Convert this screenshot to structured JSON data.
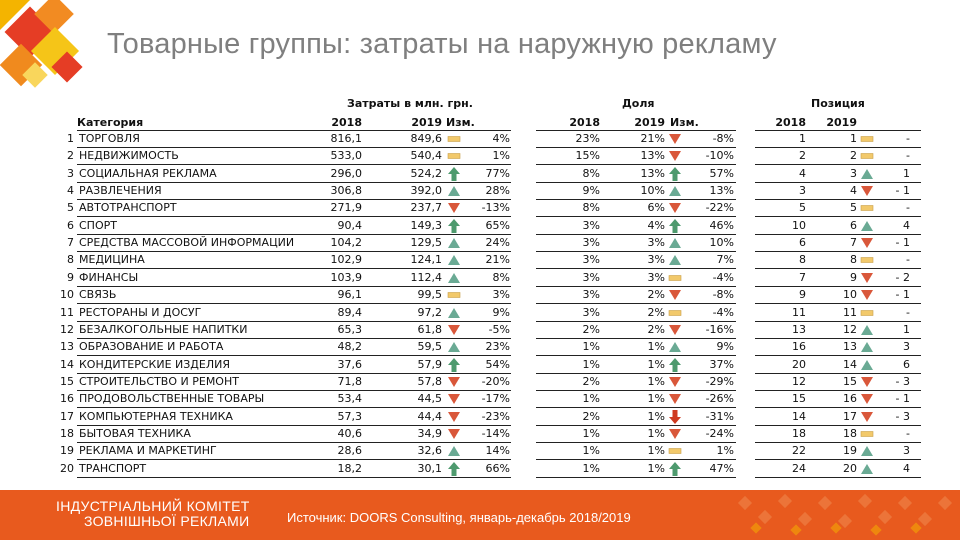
{
  "title": "Товарные группы: затраты на наружную рекламу",
  "headers": {
    "spend_group": "Затраты в млн. грн.",
    "share_group": "Доля",
    "position_group": "Позиция",
    "category": "Категория",
    "y2018": "2018",
    "y2019": "2019",
    "change": "Изм."
  },
  "rows": [
    {
      "n": "1",
      "name": "ТОРГОВЛЯ",
      "s18": "816,1",
      "s19": "849,6",
      "si": "flat",
      "sc": "4%",
      "d18": "23%",
      "d19": "21%",
      "di": "down",
      "dc": "-8%",
      "p18": "1",
      "p19": "1",
      "pi": "flat",
      "pc": "-"
    },
    {
      "n": "2",
      "name": "НЕДВИЖИМОСТЬ",
      "s18": "533,0",
      "s19": "540,4",
      "si": "flat",
      "sc": "1%",
      "d18": "15%",
      "d19": "13%",
      "di": "down",
      "dc": "-10%",
      "p18": "2",
      "p19": "2",
      "pi": "flat",
      "pc": "-"
    },
    {
      "n": "3",
      "name": "СОЦИАЛЬНАЯ РЕКЛАМА",
      "s18": "296,0",
      "s19": "524,2",
      "si": "bigup",
      "sc": "77%",
      "d18": "8%",
      "d19": "13%",
      "di": "bigup",
      "dc": "57%",
      "p18": "4",
      "p19": "3",
      "pi": "up",
      "pc": "1"
    },
    {
      "n": "4",
      "name": "РАЗВЛЕЧЕНИЯ",
      "s18": "306,8",
      "s19": "392,0",
      "si": "up",
      "sc": "28%",
      "d18": "9%",
      "d19": "10%",
      "di": "up",
      "dc": "13%",
      "p18": "3",
      "p19": "4",
      "pi": "down",
      "pc": "- 1"
    },
    {
      "n": "5",
      "name": "АВТОТРАНСПОРТ",
      "s18": "271,9",
      "s19": "237,7",
      "si": "down",
      "sc": "-13%",
      "d18": "8%",
      "d19": "6%",
      "di": "down",
      "dc": "-22%",
      "p18": "5",
      "p19": "5",
      "pi": "flat",
      "pc": "-"
    },
    {
      "n": "6",
      "name": "СПОРТ",
      "s18": "90,4",
      "s19": "149,3",
      "si": "bigup",
      "sc": "65%",
      "d18": "3%",
      "d19": "4%",
      "di": "bigup",
      "dc": "46%",
      "p18": "10",
      "p19": "6",
      "pi": "up",
      "pc": "4"
    },
    {
      "n": "7",
      "name": "СРЕДСТВА МАССОВОЙ ИНФОРМАЦИИ",
      "s18": "104,2",
      "s19": "129,5",
      "si": "up",
      "sc": "24%",
      "d18": "3%",
      "d19": "3%",
      "di": "up",
      "dc": "10%",
      "p18": "6",
      "p19": "7",
      "pi": "down",
      "pc": "- 1"
    },
    {
      "n": "8",
      "name": "МЕДИЦИНА",
      "s18": "102,9",
      "s19": "124,1",
      "si": "up",
      "sc": "21%",
      "d18": "3%",
      "d19": "3%",
      "di": "up",
      "dc": "7%",
      "p18": "8",
      "p19": "8",
      "pi": "flat",
      "pc": "-"
    },
    {
      "n": "9",
      "name": "ФИНАНСЫ",
      "s18": "103,9",
      "s19": "112,4",
      "si": "up",
      "sc": "8%",
      "d18": "3%",
      "d19": "3%",
      "di": "flat",
      "dc": "-4%",
      "p18": "7",
      "p19": "9",
      "pi": "down",
      "pc": "- 2"
    },
    {
      "n": "10",
      "name": "СВЯЗЬ",
      "s18": "96,1",
      "s19": "99,5",
      "si": "flat",
      "sc": "3%",
      "d18": "3%",
      "d19": "2%",
      "di": "down",
      "dc": "-8%",
      "p18": "9",
      "p19": "10",
      "pi": "down",
      "pc": "- 1"
    },
    {
      "n": "11",
      "name": "РЕСТОРАНЫ И ДОСУГ",
      "s18": "89,4",
      "s19": "97,2",
      "si": "up",
      "sc": "9%",
      "d18": "3%",
      "d19": "2%",
      "di": "flat",
      "dc": "-4%",
      "p18": "11",
      "p19": "11",
      "pi": "flat",
      "pc": "-"
    },
    {
      "n": "12",
      "name": "БЕЗАЛКОГОЛЬНЫЕ НАПИТКИ",
      "s18": "65,3",
      "s19": "61,8",
      "si": "down",
      "sc": "-5%",
      "d18": "2%",
      "d19": "2%",
      "di": "down",
      "dc": "-16%",
      "p18": "13",
      "p19": "12",
      "pi": "up",
      "pc": "1"
    },
    {
      "n": "13",
      "name": "ОБРАЗОВАНИЕ И РАБОТА",
      "s18": "48,2",
      "s19": "59,5",
      "si": "up",
      "sc": "23%",
      "d18": "1%",
      "d19": "1%",
      "di": "up",
      "dc": "9%",
      "p18": "16",
      "p19": "13",
      "pi": "up",
      "pc": "3"
    },
    {
      "n": "14",
      "name": "КОНДИТЕРСКИЕ ИЗДЕЛИЯ",
      "s18": "37,6",
      "s19": "57,9",
      "si": "bigup",
      "sc": "54%",
      "d18": "1%",
      "d19": "1%",
      "di": "bigup",
      "dc": "37%",
      "p18": "20",
      "p19": "14",
      "pi": "up",
      "pc": "6"
    },
    {
      "n": "15",
      "name": "СТРОИТЕЛЬСТВО И РЕМОНТ",
      "s18": "71,8",
      "s19": "57,8",
      "si": "down",
      "sc": "-20%",
      "d18": "2%",
      "d19": "1%",
      "di": "down",
      "dc": "-29%",
      "p18": "12",
      "p19": "15",
      "pi": "down",
      "pc": "- 3"
    },
    {
      "n": "16",
      "name": "ПРОДОВОЛЬСТВЕННЫЕ ТОВАРЫ",
      "s18": "53,4",
      "s19": "44,5",
      "si": "down",
      "sc": "-17%",
      "d18": "1%",
      "d19": "1%",
      "di": "down",
      "dc": "-26%",
      "p18": "15",
      "p19": "16",
      "pi": "down",
      "pc": "- 1"
    },
    {
      "n": "17",
      "name": "КОМПЬЮТЕРНАЯ ТЕХНИКА",
      "s18": "57,3",
      "s19": "44,4",
      "si": "down",
      "sc": "-23%",
      "d18": "2%",
      "d19": "1%",
      "di": "bigdown",
      "dc": "-31%",
      "p18": "14",
      "p19": "17",
      "pi": "down",
      "pc": "- 3"
    },
    {
      "n": "18",
      "name": "БЫТОВАЯ ТЕХНИКА",
      "s18": "40,6",
      "s19": "34,9",
      "si": "down",
      "sc": "-14%",
      "d18": "1%",
      "d19": "1%",
      "di": "down",
      "dc": "-24%",
      "p18": "18",
      "p19": "18",
      "pi": "flat",
      "pc": "-"
    },
    {
      "n": "19",
      "name": "РЕКЛАМА И МАРКЕТИНГ",
      "s18": "28,6",
      "s19": "32,6",
      "si": "up",
      "sc": "14%",
      "d18": "1%",
      "d19": "1%",
      "di": "flat",
      "dc": "1%",
      "p18": "22",
      "p19": "19",
      "pi": "up",
      "pc": "3"
    },
    {
      "n": "20",
      "name": "ТРАНСПОРТ",
      "s18": "18,2",
      "s19": "30,1",
      "si": "bigup",
      "sc": "66%",
      "d18": "1%",
      "d19": "1%",
      "di": "bigup",
      "dc": "47%",
      "p18": "24",
      "p19": "20",
      "pi": "up",
      "pc": "4"
    }
  ],
  "footer": {
    "org_line1": "ІНДУСТРІАЛЬНИЙ КОМІТЕТ",
    "org_line2": "ЗОВНІШНЬОЇ РЕКЛАМИ",
    "source": "Источник: DOORS Consulting, январь-декабрь 2018/2019"
  },
  "colors": {
    "up": "#6aaa94",
    "bigup": "#4e9a6e",
    "down": "#d9573a",
    "bigdown": "#cf3a20",
    "flat": "#f2c96b",
    "footer": "#e85a1e"
  }
}
